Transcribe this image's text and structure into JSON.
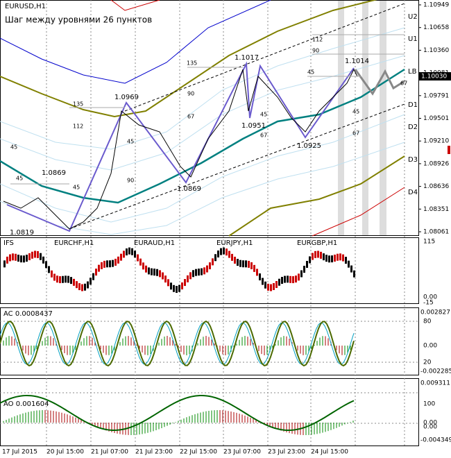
{
  "main": {
    "symbol": "EURUSD,H1",
    "note": "Шаг между уровнями 26 пунктов",
    "levels": [
      "U2",
      "U1",
      "LB",
      "D1",
      "D2",
      "D3",
      "D4"
    ],
    "price_axis": [
      "1.10949",
      "1.10658",
      "1.10360",
      "1.10081",
      "1.09791",
      "1.09501",
      "1.09210",
      "1.08926",
      "1.08636",
      "1.08351",
      "1.08061"
    ],
    "current_price": "1.10030",
    "pivots": [
      "1.0819",
      "1.0869",
      "1.0969",
      "1.0869",
      "1.1017",
      "1.0951",
      "1.0925",
      "1.1014"
    ],
    "fib_labels": [
      "135",
      "112",
      "45",
      "45",
      "45",
      "45",
      "90",
      "135",
      "90",
      "67",
      "45",
      "67",
      "45",
      "112",
      "90",
      "45",
      "67",
      "67"
    ]
  },
  "ifs": {
    "label": "IFS",
    "pairs": [
      "EURCHF,H1",
      "EURAUD,H1",
      "EURJPY,H1",
      "EURGBP,H1"
    ],
    "axis": [
      "115",
      "0.00",
      "-15"
    ]
  },
  "ac": {
    "label": "AC 0.0008437",
    "axis": [
      "0.002827",
      "80",
      "0.00",
      "20",
      "-0.002285"
    ]
  },
  "ao": {
    "label": "AO 0.001604",
    "axis": [
      "0.009311",
      "100",
      "0.00",
      "0.00",
      "-0.004349"
    ]
  },
  "time_axis": [
    "17 Jul 2015",
    "20 Jul 15:00",
    "21 Jul 07:00",
    "21 Jul 23:00",
    "22 Jul 15:00",
    "23 Jul 07:00",
    "23 Jul 23:00",
    "24 Jul 15:00"
  ]
}
